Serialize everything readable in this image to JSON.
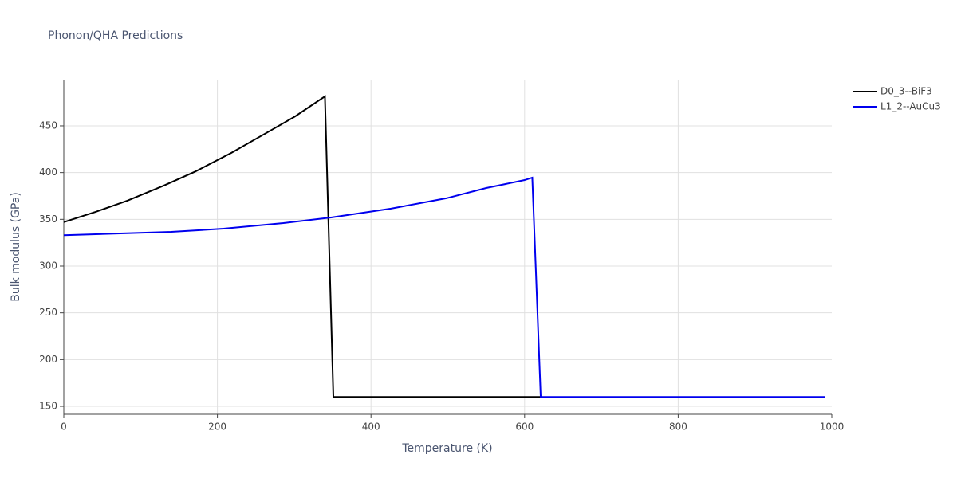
{
  "chart_data": {
    "type": "line",
    "title": "Phonon/QHA Predictions",
    "x_label": "Temperature (K)",
    "y_label": "Bulk modulus (GPa)",
    "xlim": [
      0,
      1000
    ],
    "xticks": [
      0,
      200,
      400,
      600,
      800,
      1000
    ],
    "ylim": [
      141.5,
      499.4
    ],
    "yticks": [
      150,
      200,
      250,
      300,
      350,
      400,
      450
    ],
    "grid": true,
    "legend_position": "right",
    "series": [
      {
        "name": "D0_3--BiF3",
        "color": "#000000",
        "x": [
          0,
          41.5,
          83,
          130,
          171,
          218,
          265,
          301,
          340,
          351,
          621
        ],
        "values": [
          347,
          358,
          370,
          386,
          401,
          421,
          443,
          460,
          481.5,
          160,
          160
        ]
      },
      {
        "name": "L1_2--AuCu3",
        "color": "#0000ee",
        "x": [
          0,
          140,
          208,
          286,
          348,
          426,
          498,
          550,
          600,
          610,
          621,
          991
        ],
        "values": [
          333,
          336.6,
          340,
          346,
          352,
          361.5,
          372.5,
          383.5,
          392,
          394.6,
          160,
          160
        ]
      }
    ]
  }
}
